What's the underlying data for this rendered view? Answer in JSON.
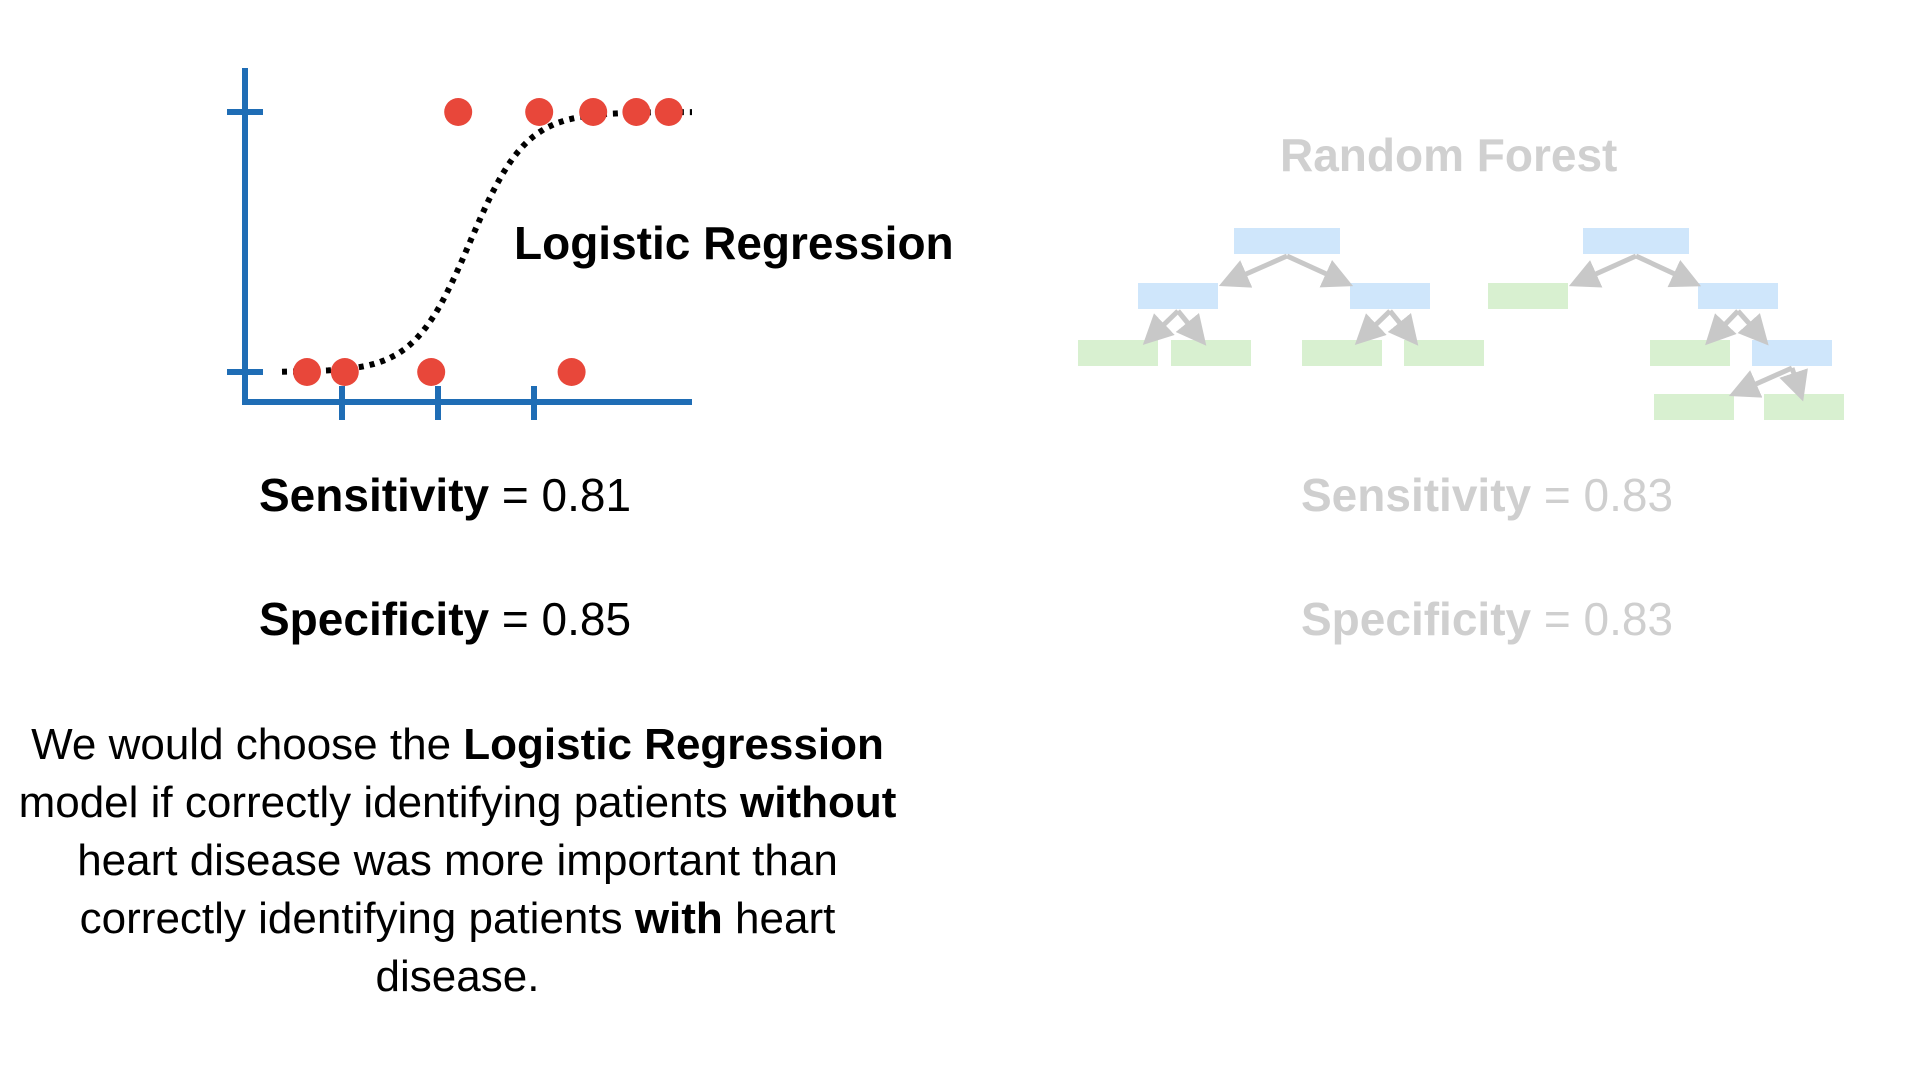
{
  "logistic_regression": {
    "title": "Logistic Regression",
    "sensitivity": {
      "label": "Sensitivity",
      "eq": "=",
      "value": "0.81"
    },
    "specificity": {
      "label": "Specificity",
      "eq": "=",
      "value": "0.85"
    },
    "points": [
      {
        "x": 0.25,
        "y": 0
      },
      {
        "x": 0.6,
        "y": 0
      },
      {
        "x": 1.4,
        "y": 0
      },
      {
        "x": 2.7,
        "y": 0
      },
      {
        "x": 1.65,
        "y": 1
      },
      {
        "x": 2.4,
        "y": 1
      },
      {
        "x": 2.9,
        "y": 1
      },
      {
        "x": 3.3,
        "y": 1
      },
      {
        "x": 3.6,
        "y": 1
      }
    ],
    "x_ticks": 3,
    "y_ticks": [
      "0",
      "1"
    ],
    "colors": {
      "axis": "#1f6db5",
      "points": "#e8473a",
      "curve": "#000000"
    }
  },
  "random_forest": {
    "title": "Random Forest",
    "sensitivity": {
      "label": "Sensitivity",
      "eq": "=",
      "value": "0.83"
    },
    "specificity": {
      "label": "Specificity",
      "eq": "=",
      "value": "0.83"
    },
    "colors": {
      "node_blue": "#cfe6fb",
      "node_green": "#d8f0d0",
      "arrow": "#c8c8c8",
      "text": "#cfcfcf"
    }
  },
  "conclusion": {
    "t1": "We would choose the ",
    "b1": "Logistic Regression",
    "t2": " model if correctly identifying patients ",
    "b2": "without",
    "t3": " heart disease was more important than correctly identifying patients ",
    "b3": "with",
    "t4": " heart disease."
  }
}
